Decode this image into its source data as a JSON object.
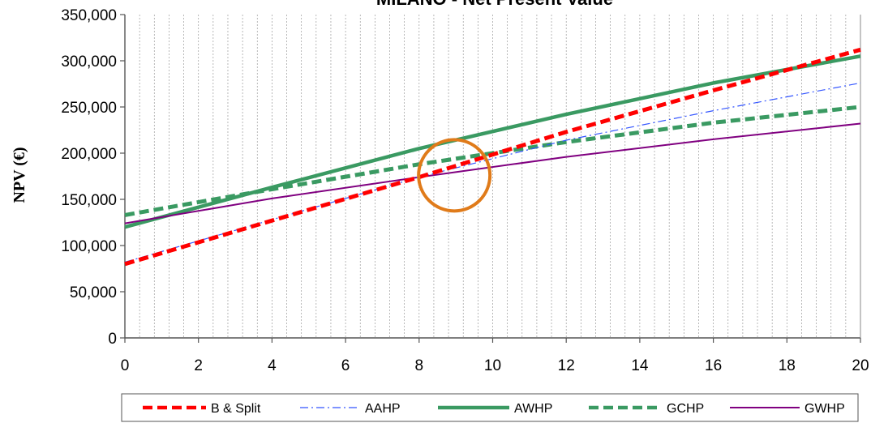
{
  "chart_data": {
    "type": "line",
    "title": "MILANO - Net Present Value",
    "xlabel": "",
    "ylabel": "NPV (€)",
    "xlim": [
      0,
      20
    ],
    "ylim": [
      0,
      350000
    ],
    "x_ticks": [
      "0",
      "2",
      "4",
      "6",
      "8",
      "10",
      "12",
      "14",
      "16",
      "18",
      "20"
    ],
    "y_ticks": [
      "0",
      "50,000",
      "100,000",
      "150,000",
      "200,000",
      "250,000",
      "300,000",
      "350,000"
    ],
    "grid": "vertical",
    "legend_position": "bottom",
    "x": [
      0,
      4,
      8,
      12,
      16,
      20
    ],
    "series": [
      {
        "name": "B & Split",
        "color": "#ff0000",
        "style": "dashed-thick",
        "values": [
          80000,
          127000,
          174000,
          223000,
          268000,
          312000
        ]
      },
      {
        "name": "AAHP",
        "color": "#3355ff",
        "style": "dash-dot-thin",
        "values": [
          82000,
          128000,
          174000,
          214000,
          246000,
          276000
        ]
      },
      {
        "name": "AWHP",
        "color": "#3a9a62",
        "style": "solid-thick",
        "values": [
          120000,
          163000,
          205000,
          242000,
          276000,
          305000
        ]
      },
      {
        "name": "GCHP",
        "color": "#3a9a62",
        "style": "dashed-thick",
        "values": [
          133000,
          161000,
          188000,
          212000,
          233000,
          250000
        ]
      },
      {
        "name": "GWHP",
        "color": "#800080",
        "style": "solid-thin",
        "values": [
          124000,
          151000,
          174000,
          196000,
          215000,
          232000
        ]
      }
    ],
    "annotations": [
      {
        "type": "circle",
        "color": "#e07b1a",
        "x": 9,
        "y": 176000
      }
    ]
  }
}
